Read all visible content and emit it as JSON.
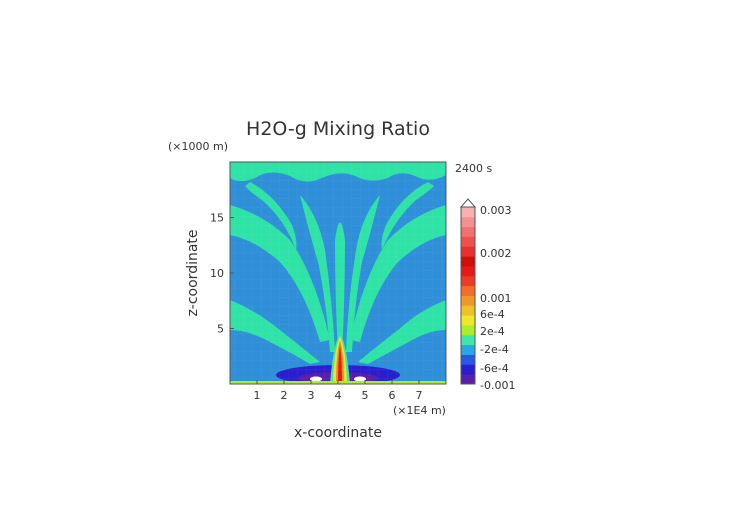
{
  "chart_data": {
    "type": "heatmap",
    "title": "H2O-g Mixing Ratio",
    "xlabel": "x-coordinate",
    "ylabel": "z-coordinate",
    "x_unit": "(×1E4 m)",
    "y_unit": "(×1000 m)",
    "time_label": "2400 s",
    "xlim": [
      0,
      8
    ],
    "ylim": [
      0,
      20
    ],
    "x_ticks": [
      "1",
      "2",
      "3",
      "4",
      "5",
      "6",
      "7"
    ],
    "y_ticks": [
      "5",
      "10",
      "15"
    ],
    "colorbar": {
      "labels": [
        "0.003",
        "0.002",
        "0.001",
        "6e-4",
        "2e-4",
        "-2e-4",
        "-6e-4",
        "-0.001"
      ],
      "colors": [
        "#5a1fa8",
        "#2a1ecf",
        "#2a58e6",
        "#2aa8e6",
        "#3ee6a8",
        "#a8ee2a",
        "#eee82a",
        "#eec22a",
        "#ee982a",
        "#ee6e2a",
        "#ee3a2a",
        "#e61a1a",
        "#cc1010",
        "#e83030",
        "#ee5050",
        "#f07070",
        "#f49090",
        "#f8b0b0"
      ]
    },
    "field": {
      "background": "#2f8fd8",
      "plume": "#2fe3a6",
      "anomaly_core": "#e41a1a",
      "description_values": "positive anomaly column centered at x≈4, rising to z≈4.5; negative anomaly band near surface between x≈2 and x≈6"
    }
  }
}
